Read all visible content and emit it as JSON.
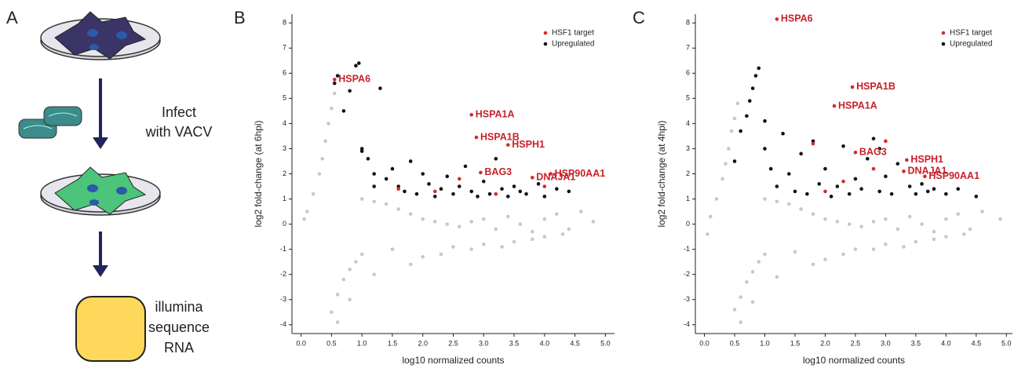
{
  "panels": {
    "labels": [
      "A",
      "B",
      "C"
    ],
    "infect_label": [
      "Infect",
      "with VACV"
    ],
    "sequence_label": [
      "illumina",
      "sequence",
      "RNA"
    ]
  },
  "chart_data": [
    {
      "type": "scatter",
      "xlabel": "log10 normalized counts",
      "ylabel": "log2 fold-change (at 6hpi)",
      "xlim": [
        -0.15,
        5.15
      ],
      "ylim": [
        -4.35,
        8.35
      ],
      "xticks": [
        {
          "value": 0,
          "label": "0.0"
        },
        {
          "value": 0.5,
          "label": "0.5"
        },
        {
          "value": 1,
          "label": "1.0"
        },
        {
          "value": 1.5,
          "label": "1.5"
        },
        {
          "value": 2,
          "label": "2.0"
        },
        {
          "value": 2.5,
          "label": "2.5"
        },
        {
          "value": 3,
          "label": "3.0"
        },
        {
          "value": 3.5,
          "label": "3.5"
        },
        {
          "value": 4,
          "label": "4.0"
        },
        {
          "value": 4.5,
          "label": "4.5"
        },
        {
          "value": 5,
          "label": "5.0"
        }
      ],
      "yticks": [
        -4,
        -3,
        -2,
        -1,
        0,
        1,
        2,
        3,
        4,
        5,
        6,
        7,
        8
      ],
      "legend": "upper right",
      "series": [
        {
          "color": "#c8c8c8",
          "x": [
            0.05,
            0.1,
            0.2,
            0.3,
            0.35,
            0.4,
            0.45,
            0.5,
            0.55,
            0.6,
            0.5,
            0.6,
            0.7,
            0.8,
            0.9,
            1.0,
            1.2,
            1.4,
            1.6,
            1.8,
            2.0,
            2.2,
            2.4,
            2.6,
            2.8,
            3.0,
            3.2,
            3.4,
            3.6,
            3.8,
            4.0,
            4.2,
            4.4,
            4.6,
            4.8,
            1.5,
            2.0,
            2.5,
            3.0,
            3.5,
            4.0,
            1.2,
            1.8,
            2.3,
            2.8,
            3.3,
            3.8,
            4.3,
            0.8,
            1.0
          ],
          "values": [
            0.2,
            0.5,
            1.2,
            2.0,
            2.6,
            3.3,
            4.0,
            4.6,
            5.2,
            -3.9,
            -3.5,
            -2.8,
            -2.2,
            -1.8,
            -1.5,
            -1.2,
            0.9,
            0.8,
            0.6,
            0.4,
            0.2,
            0.1,
            0,
            -0.1,
            0.1,
            0.2,
            -0.2,
            0.3,
            0,
            -0.3,
            0.2,
            0.4,
            -0.2,
            0.5,
            0.1,
            -1.0,
            -1.3,
            -0.9,
            -0.8,
            -0.7,
            -0.5,
            -2.0,
            -1.6,
            -1.2,
            -1.0,
            -0.9,
            -0.6,
            -0.4,
            -3.0,
            1.0
          ]
        },
        {
          "name": "Upregulated",
          "color": "#111111",
          "x": [
            0.55,
            0.6,
            0.7,
            0.8,
            0.9,
            0.95,
            1.0,
            1.1,
            1.2,
            1.3,
            1.4,
            1.5,
            1.6,
            1.7,
            1.8,
            1.9,
            2.0,
            2.1,
            2.2,
            2.3,
            2.4,
            2.5,
            2.6,
            2.7,
            2.8,
            2.9,
            3.0,
            3.1,
            3.2,
            3.3,
            3.4,
            3.5,
            3.6,
            3.7,
            3.9,
            4.0,
            4.2,
            4.4,
            1.2,
            1.0
          ],
          "values": [
            5.6,
            5.9,
            4.5,
            5.3,
            6.3,
            6.4,
            3.0,
            2.6,
            2.0,
            5.4,
            1.8,
            2.2,
            1.5,
            1.3,
            2.5,
            1.2,
            2.0,
            1.6,
            1.1,
            1.4,
            1.9,
            1.2,
            1.5,
            2.3,
            1.3,
            1.1,
            1.7,
            1.2,
            2.6,
            1.4,
            1.1,
            1.5,
            1.3,
            1.2,
            1.6,
            1.1,
            1.4,
            1.3,
            1.5,
            2.9
          ]
        },
        {
          "name": "HSF1 target",
          "color": "#d42a2a",
          "x": [
            0.55,
            2.8,
            2.88,
            3.4,
            4.1,
            2.95,
            3.8,
            1.6,
            2.6,
            3.2,
            2.2,
            4.0
          ],
          "values": [
            5.75,
            4.35,
            3.45,
            3.15,
            2.0,
            2.05,
            1.85,
            1.4,
            1.8,
            1.2,
            1.3,
            1.5
          ]
        }
      ],
      "annotations": [
        {
          "text": "HSPA6",
          "x": 0.55,
          "y": 5.75
        },
        {
          "text": "HSPA1A",
          "x": 2.8,
          "y": 4.35
        },
        {
          "text": "HSPA1B",
          "x": 2.88,
          "y": 3.45
        },
        {
          "text": "HSPH1",
          "x": 3.4,
          "y": 3.15
        },
        {
          "text": "HSP90AA1",
          "x": 4.1,
          "y": 2.0
        },
        {
          "text": "BAG3",
          "x": 2.95,
          "y": 2.05
        },
        {
          "text": "DNAJA1",
          "x": 3.8,
          "y": 1.85
        }
      ]
    },
    {
      "type": "scatter",
      "xlabel": "log10 normalized counts",
      "ylabel": "log2 fold-change (at 4hpi)",
      "xlim": [
        -0.15,
        5.1
      ],
      "ylim": [
        -4.35,
        8.35
      ],
      "xticks": [
        {
          "value": 0,
          "label": "0.0"
        },
        {
          "value": 0.5,
          "label": "0.5"
        },
        {
          "value": 1,
          "label": "1.0"
        },
        {
          "value": 1.5,
          "label": "1.5"
        },
        {
          "value": 2,
          "label": "2.0"
        },
        {
          "value": 2.5,
          "label": "2.5"
        },
        {
          "value": 3,
          "label": "3.0"
        },
        {
          "value": 3.5,
          "label": "3.5"
        },
        {
          "value": 4,
          "label": "4.0"
        },
        {
          "value": 4.5,
          "label": "4.5"
        },
        {
          "value": 5,
          "label": "5.0"
        }
      ],
      "yticks": [
        -4,
        -3,
        -2,
        -1,
        0,
        1,
        2,
        3,
        4,
        5,
        6,
        7,
        8
      ],
      "legend": "upper right",
      "series": [
        {
          "color": "#c8c8c8",
          "x": [
            0.05,
            0.1,
            0.2,
            0.3,
            0.35,
            0.4,
            0.45,
            0.5,
            0.55,
            0.6,
            0.5,
            0.6,
            0.7,
            0.8,
            0.9,
            1.0,
            1.2,
            1.4,
            1.6,
            1.8,
            2.0,
            2.2,
            2.4,
            2.6,
            2.8,
            3.0,
            3.2,
            3.4,
            3.6,
            3.8,
            4.0,
            4.2,
            4.4,
            4.6,
            4.9,
            1.5,
            2.0,
            2.5,
            3.0,
            3.5,
            4.0,
            1.2,
            1.8,
            2.3,
            2.8,
            3.3,
            3.8,
            4.3,
            0.8,
            1.0
          ],
          "values": [
            -0.4,
            0.3,
            1.0,
            1.8,
            2.4,
            3.0,
            3.7,
            4.2,
            4.8,
            -3.9,
            -3.4,
            -2.9,
            -2.3,
            -1.9,
            -1.5,
            -1.2,
            0.9,
            0.8,
            0.6,
            0.4,
            0.2,
            0.1,
            0,
            -0.1,
            0.1,
            0.2,
            -0.2,
            0.3,
            0,
            -0.3,
            0.2,
            0.4,
            -0.2,
            0.5,
            0.2,
            -1.1,
            -1.4,
            -1.0,
            -0.8,
            -0.7,
            -0.5,
            -2.1,
            -1.6,
            -1.2,
            -1.0,
            -0.9,
            -0.6,
            -0.4,
            -3.1,
            1.0
          ]
        },
        {
          "name": "Upregulated",
          "color": "#111111",
          "x": [
            0.5,
            0.6,
            0.7,
            0.75,
            0.8,
            0.85,
            0.9,
            1.0,
            1.1,
            1.2,
            1.3,
            1.4,
            1.5,
            1.6,
            1.7,
            1.8,
            1.9,
            2.0,
            2.1,
            2.2,
            2.3,
            2.4,
            2.5,
            2.6,
            2.7,
            2.8,
            2.9,
            3.0,
            3.1,
            3.2,
            3.4,
            3.5,
            3.6,
            3.7,
            3.8,
            4.0,
            4.2,
            4.5,
            1.0,
            2.9
          ],
          "values": [
            2.5,
            3.7,
            4.3,
            4.9,
            5.4,
            5.9,
            6.2,
            3.0,
            2.2,
            1.5,
            3.6,
            2.0,
            1.3,
            2.8,
            1.2,
            3.3,
            1.6,
            2.2,
            1.1,
            1.5,
            3.1,
            1.2,
            1.8,
            1.4,
            2.6,
            3.4,
            1.3,
            1.9,
            1.2,
            2.4,
            1.5,
            1.2,
            1.6,
            1.3,
            1.4,
            1.2,
            1.4,
            1.1,
            4.1,
            3.0
          ]
        },
        {
          "name": "HSF1 target",
          "color": "#d42a2a",
          "x": [
            1.2,
            2.45,
            2.15,
            2.5,
            3.35,
            3.3,
            3.65,
            1.8,
            2.0,
            2.8,
            3.0,
            2.3
          ],
          "values": [
            8.15,
            5.45,
            4.7,
            2.85,
            2.55,
            2.1,
            1.9,
            3.2,
            1.3,
            2.2,
            3.3,
            1.7
          ]
        }
      ],
      "annotations": [
        {
          "text": "HSPA6",
          "x": 1.2,
          "y": 8.15
        },
        {
          "text": "HSPA1B",
          "x": 2.45,
          "y": 5.45
        },
        {
          "text": "HSPA1A",
          "x": 2.15,
          "y": 4.7
        },
        {
          "text": "BAG3",
          "x": 2.5,
          "y": 2.85
        },
        {
          "text": "HSPH1",
          "x": 3.35,
          "y": 2.55
        },
        {
          "text": "DNAJA1",
          "x": 3.3,
          "y": 2.1
        },
        {
          "text": "HSP90AA1",
          "x": 3.65,
          "y": 1.9
        }
      ]
    }
  ]
}
